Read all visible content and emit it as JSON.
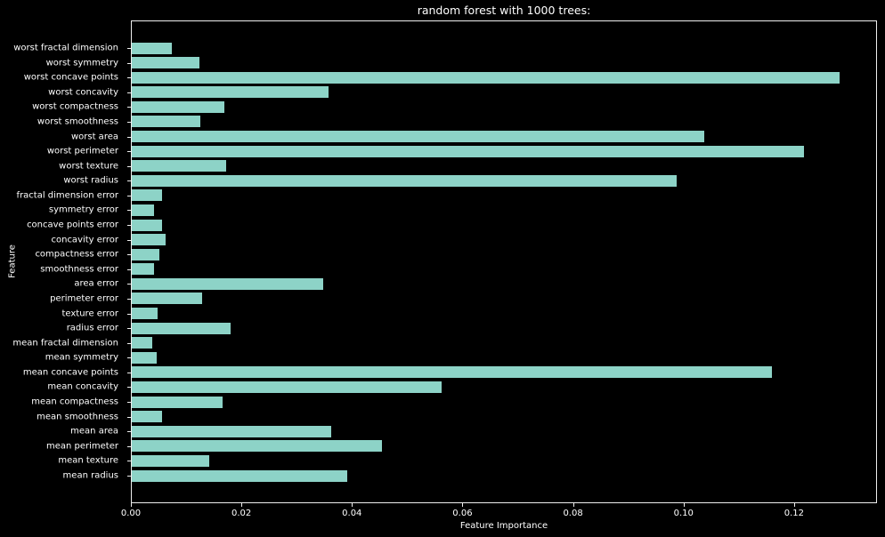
{
  "title": "random forest with 1000 trees:",
  "chart_data": {
    "type": "bar",
    "orientation": "horizontal",
    "title": "random forest with 1000 trees:",
    "xlabel": "Feature Importance",
    "ylabel": "Feature",
    "xlim": [
      0,
      0.135
    ],
    "xticks": [
      0.0,
      0.02,
      0.04,
      0.06,
      0.08,
      0.1,
      0.12
    ],
    "grid": false,
    "legend": null,
    "bar_color": "#8dd3c7",
    "background_color": "#000000",
    "text_color": "#ffffff",
    "categories_top_to_bottom": [
      "worst fractal dimension",
      "worst symmetry",
      "worst concave points",
      "worst concavity",
      "worst compactness",
      "worst smoothness",
      "worst area",
      "worst perimeter",
      "worst texture",
      "worst radius",
      "fractal dimension error",
      "symmetry error",
      "concave points error",
      "concavity error",
      "compactness error",
      "smoothness error",
      "area error",
      "perimeter error",
      "texture error",
      "radius error",
      "mean fractal dimension",
      "mean symmetry",
      "mean concave points",
      "mean concavity",
      "mean compactness",
      "mean smoothness",
      "mean area",
      "mean perimeter",
      "mean texture",
      "mean radius"
    ],
    "values": [
      0.0074,
      0.0124,
      0.1282,
      0.0357,
      0.0169,
      0.0125,
      0.1037,
      0.1218,
      0.0172,
      0.0988,
      0.0056,
      0.0042,
      0.0056,
      0.0063,
      0.0052,
      0.0042,
      0.0348,
      0.0129,
      0.0048,
      0.018,
      0.0039,
      0.0047,
      0.116,
      0.0562,
      0.0166,
      0.0056,
      0.0362,
      0.0455,
      0.0141,
      0.0391
    ]
  }
}
